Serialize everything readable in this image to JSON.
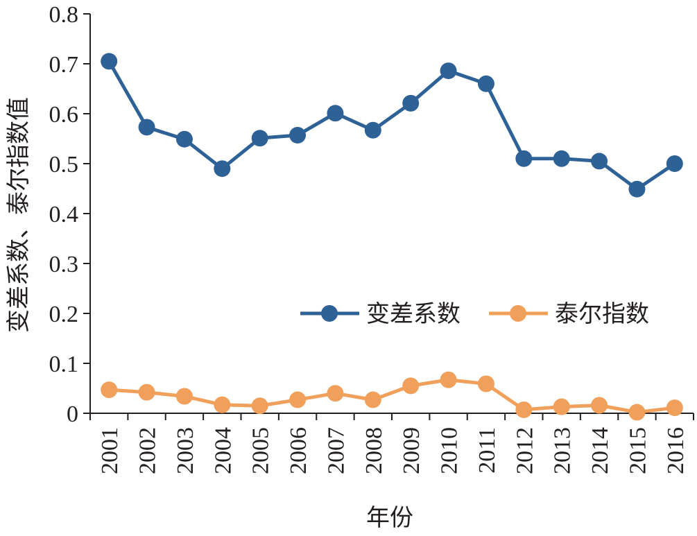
{
  "chart_data": {
    "type": "line",
    "categories": [
      "2001",
      "2002",
      "2003",
      "2004",
      "2005",
      "2006",
      "2007",
      "2008",
      "2009",
      "2010",
      "2011",
      "2012",
      "2013",
      "2014",
      "2015",
      "2016"
    ],
    "series": [
      {
        "name": "变差系数",
        "color": "#2e6297",
        "values": [
          0.705,
          0.573,
          0.549,
          0.49,
          0.551,
          0.557,
          0.601,
          0.567,
          0.621,
          0.686,
          0.66,
          0.51,
          0.51,
          0.505,
          0.449,
          0.5
        ]
      },
      {
        "name": "泰尔指数",
        "color": "#f0a05a",
        "values": [
          0.047,
          0.042,
          0.034,
          0.017,
          0.015,
          0.027,
          0.04,
          0.027,
          0.055,
          0.067,
          0.059,
          0.007,
          0.013,
          0.016,
          0.002,
          0.011
        ]
      }
    ],
    "ylim": [
      0,
      0.8
    ],
    "yticks": [
      "0",
      "0.1",
      "0.2",
      "0.3",
      "0.4",
      "0.5",
      "0.6",
      "0.7",
      "0.8"
    ],
    "xlabel": "年份",
    "ylabel": "变差系数、泰尔指数值",
    "legend": "right, inside plot",
    "grid": false
  }
}
